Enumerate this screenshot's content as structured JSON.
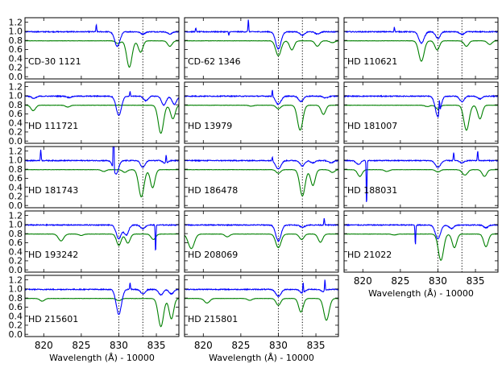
{
  "chart_data": {
    "type": "line",
    "figure": "Grid of normalized spectra (observed vs. model) around the 10830 Å He I line",
    "x_axis": {
      "label": "Wavelength (Å) - 10000",
      "range": [
        817.5,
        838.0
      ],
      "ticks": [
        820,
        825,
        830,
        835
      ],
      "tick_labels": [
        "820",
        "825",
        "830",
        "835"
      ]
    },
    "y_axis": {
      "range": [
        -0.05,
        1.3
      ],
      "ticks": [
        0.0,
        0.2,
        0.4,
        0.6,
        0.8,
        1.0,
        1.2
      ],
      "tick_labels": [
        "0.0",
        "0.2",
        "0.4",
        "0.6",
        "0.8",
        "1.0",
        "1.2"
      ]
    },
    "reference_lines": [
      830.0,
      833.2
    ],
    "series_styles": [
      {
        "name": "observed (blue)",
        "color": "#0000ff",
        "baseline": 0.99
      },
      {
        "name": "model (green)",
        "color": "#008000",
        "baseline": 0.79
      }
    ],
    "panels": [
      {
        "star": "CD-30 1121",
        "blue_lines": [
          [
            829.8,
            0.32,
            0.35
          ],
          [
            833.2,
            0.05,
            0.3
          ],
          [
            836.8,
            0.05,
            0.3
          ]
        ],
        "blue_spikes": [
          [
            827.0,
            0.15
          ]
        ],
        "green_lines": [
          [
            831.4,
            0.58,
            0.35
          ],
          [
            832.9,
            0.25,
            0.3
          ],
          [
            836.8,
            0.12,
            0.3
          ],
          [
            829.9,
            0.06,
            0.3
          ]
        ]
      },
      {
        "star": "CD-62 1346",
        "blue_lines": [
          [
            830.0,
            0.38,
            0.35
          ],
          [
            833.2,
            0.08,
            0.3
          ],
          [
            835.2,
            0.05,
            0.3
          ]
        ],
        "blue_spikes": [
          [
            826.0,
            0.27
          ],
          [
            819.0,
            0.08
          ],
          [
            823.4,
            -0.08
          ]
        ],
        "green_lines": [
          [
            830.0,
            0.33,
            0.35
          ],
          [
            831.8,
            0.2,
            0.3
          ],
          [
            835.2,
            0.12,
            0.3
          ],
          [
            837.2,
            0.04,
            0.3
          ]
        ]
      },
      {
        "star": "HD 110621",
        "blue_lines": [
          [
            827.8,
            0.25,
            0.35
          ],
          [
            830.0,
            0.15,
            0.3
          ],
          [
            833.2,
            0.06,
            0.3
          ]
        ],
        "blue_spikes": [
          [
            824.2,
            0.1
          ]
        ],
        "green_lines": [
          [
            827.8,
            0.45,
            0.35
          ],
          [
            829.9,
            0.2,
            0.3
          ],
          [
            833.8,
            0.12,
            0.3
          ],
          [
            836.9,
            0.08,
            0.3
          ]
        ]
      },
      {
        "star": "HD 111721",
        "blue_lines": [
          [
            830.0,
            0.42,
            0.35
          ],
          [
            833.6,
            0.1,
            0.3
          ],
          [
            836.0,
            0.2,
            0.3
          ],
          [
            837.4,
            0.18,
            0.3
          ],
          [
            818.7,
            0.05,
            0.3
          ],
          [
            823.4,
            0.03,
            0.3
          ]
        ],
        "blue_spikes": [
          [
            831.5,
            0.1
          ]
        ],
        "green_lines": [
          [
            835.6,
            0.62,
            0.35
          ],
          [
            837.2,
            0.3,
            0.3
          ],
          [
            818.6,
            0.12,
            0.3
          ],
          [
            823.2,
            0.04,
            0.3
          ]
        ]
      },
      {
        "star": "HD 13979",
        "blue_lines": [
          [
            830.0,
            0.18,
            0.35
          ],
          [
            833.0,
            0.12,
            0.3
          ],
          [
            836.3,
            0.04,
            0.3
          ]
        ],
        "blue_spikes": [
          [
            829.2,
            0.15
          ]
        ],
        "green_lines": [
          [
            832.9,
            0.55,
            0.35
          ],
          [
            836.0,
            0.2,
            0.3
          ],
          [
            830.0,
            0.08,
            0.3
          ],
          [
            826.4,
            0.02,
            0.3
          ]
        ]
      },
      {
        "star": "HD 181007",
        "blue_lines": [
          [
            830.0,
            0.45,
            0.35
          ],
          [
            833.2,
            0.12,
            0.3
          ],
          [
            835.6,
            0.06,
            0.3
          ]
        ],
        "blue_spikes": [
          [
            830.2,
            0.3
          ]
        ],
        "green_lines": [
          [
            833.8,
            0.55,
            0.35
          ],
          [
            835.6,
            0.3,
            0.3
          ],
          [
            830.0,
            0.08,
            0.3
          ],
          [
            828.6,
            0.03,
            0.3
          ]
        ]
      },
      {
        "star": "HD 181743",
        "blue_lines": [
          [
            829.6,
            0.3,
            0.35
          ],
          [
            833.2,
            0.15,
            0.3
          ],
          [
            836.2,
            0.06,
            0.3
          ]
        ],
        "blue_spikes": [
          [
            819.6,
            0.25
          ],
          [
            829.3,
            1.5
          ],
          [
            836.3,
            0.18
          ]
        ],
        "green_lines": [
          [
            833.0,
            0.6,
            0.35
          ],
          [
            834.5,
            0.4,
            0.3
          ],
          [
            828.0,
            0.04,
            0.3
          ],
          [
            830.8,
            0.06,
            0.3
          ]
        ]
      },
      {
        "star": "HD 186478",
        "blue_lines": [
          [
            830.0,
            0.18,
            0.35
          ],
          [
            833.2,
            0.12,
            0.3
          ],
          [
            834.6,
            0.05,
            0.3
          ],
          [
            837.0,
            0.05,
            0.3
          ]
        ],
        "blue_spikes": [
          [
            829.2,
            0.1
          ]
        ],
        "green_lines": [
          [
            833.2,
            0.58,
            0.35
          ],
          [
            834.6,
            0.35,
            0.3
          ],
          [
            830.0,
            0.08,
            0.3
          ],
          [
            837.2,
            0.06,
            0.3
          ]
        ]
      },
      {
        "star": "HD 188031",
        "blue_lines": [
          [
            830.0,
            0.15,
            0.35
          ],
          [
            833.2,
            0.05,
            0.3
          ],
          [
            819.4,
            0.08,
            0.3
          ]
        ],
        "blue_spikes": [
          [
            820.5,
            -1.0
          ],
          [
            832.1,
            0.18
          ],
          [
            835.3,
            0.22
          ]
        ],
        "green_lines": [
          [
            833.6,
            0.12,
            0.35
          ],
          [
            836.2,
            0.15,
            0.3
          ],
          [
            819.6,
            0.15,
            0.3
          ],
          [
            823.2,
            0.04,
            0.3
          ],
          [
            830.0,
            0.05,
            0.3
          ]
        ]
      },
      {
        "star": "HD 193242",
        "blue_lines": [
          [
            830.0,
            0.3,
            0.35
          ],
          [
            831.0,
            0.22,
            0.3
          ],
          [
            833.2,
            0.08,
            0.3
          ]
        ],
        "blue_spikes": [
          [
            834.9,
            0.4
          ],
          [
            834.9,
            -1.0
          ]
        ],
        "green_lines": [
          [
            822.3,
            0.15,
            0.35
          ],
          [
            830.0,
            0.25,
            0.3
          ],
          [
            831.2,
            0.2,
            0.3
          ],
          [
            834.6,
            0.12,
            0.3
          ],
          [
            825.0,
            0.03,
            0.3
          ]
        ]
      },
      {
        "star": "HD 208069",
        "blue_lines": [
          [
            830.0,
            0.35,
            0.35
          ],
          [
            833.2,
            0.05,
            0.3
          ]
        ],
        "blue_spikes": [
          [
            836.1,
            0.15
          ]
        ],
        "green_lines": [
          [
            818.4,
            0.32,
            0.4
          ],
          [
            823.2,
            0.06,
            0.3
          ],
          [
            830.0,
            0.3,
            0.35
          ],
          [
            833.1,
            0.12,
            0.3
          ],
          [
            835.6,
            0.18,
            0.3
          ]
        ]
      },
      {
        "star": "HD 21022",
        "blue_lines": [
          [
            830.0,
            0.3,
            0.35
          ],
          [
            831.8,
            0.08,
            0.3
          ],
          [
            836.4,
            0.06,
            0.3
          ]
        ],
        "blue_spikes": [
          [
            827.0,
            -0.45
          ]
        ],
        "green_lines": [
          [
            830.4,
            0.58,
            0.35
          ],
          [
            832.2,
            0.3,
            0.3
          ],
          [
            836.4,
            0.28,
            0.3
          ],
          [
            824.2,
            0.02,
            0.3
          ]
        ]
      },
      {
        "star": "HD 215601",
        "blue_lines": [
          [
            830.0,
            0.55,
            0.35
          ],
          [
            833.2,
            0.1,
            0.3
          ],
          [
            835.6,
            0.12,
            0.3
          ],
          [
            837.0,
            0.1,
            0.3
          ]
        ],
        "blue_spikes": [
          [
            831.5,
            0.15
          ]
        ],
        "green_lines": [
          [
            835.6,
            0.62,
            0.35
          ],
          [
            837.0,
            0.45,
            0.3
          ],
          [
            819.8,
            0.06,
            0.3
          ],
          [
            830.0,
            0.05,
            0.3
          ]
        ]
      },
      {
        "star": "HD 215801",
        "blue_lines": [
          [
            830.0,
            0.15,
            0.35
          ],
          [
            833.2,
            0.08,
            0.3
          ],
          [
            836.0,
            0.05,
            0.3
          ]
        ],
        "blue_spikes": [
          [
            833.3,
            0.22
          ],
          [
            836.2,
            0.25
          ]
        ],
        "green_lines": [
          [
            820.5,
            0.1,
            0.35
          ],
          [
            830.0,
            0.15,
            0.3
          ],
          [
            833.0,
            0.3,
            0.3
          ],
          [
            836.4,
            0.48,
            0.35
          ],
          [
            826.2,
            0.04,
            0.3
          ]
        ]
      }
    ]
  }
}
